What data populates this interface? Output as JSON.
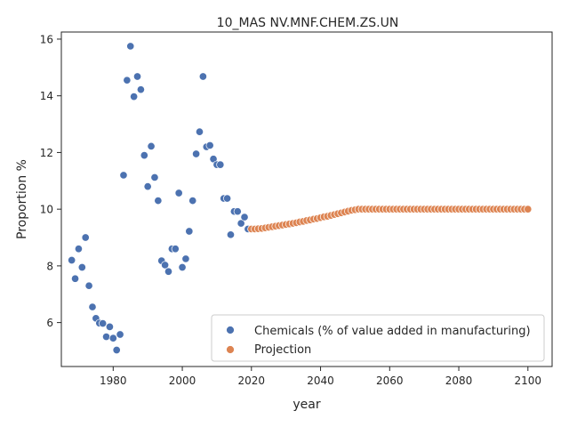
{
  "chart_data": {
    "type": "scatter",
    "title": "10_MAS NV.MNF.CHEM.ZS.UN",
    "xlabel": "year",
    "ylabel": "Proportion %",
    "xlim": [
      1965,
      2107
    ],
    "ylim": [
      4.45,
      16.25
    ],
    "xticks": [
      1980,
      2000,
      2020,
      2040,
      2060,
      2080,
      2100
    ],
    "yticks": [
      6,
      8,
      10,
      12,
      14,
      16
    ],
    "xtick_labels": [
      "1980",
      "2000",
      "2020",
      "2040",
      "2060",
      "2080",
      "2100"
    ],
    "ytick_labels": [
      "6",
      "8",
      "10",
      "12",
      "14",
      "16"
    ],
    "grid": false,
    "legend_position": "lower right",
    "series": [
      {
        "name": "Chemicals (% of value added in manufacturing)",
        "color": "#4c72b0",
        "x": [
          1968,
          1969,
          1970,
          1971,
          1972,
          1973,
          1974,
          1975,
          1976,
          1977,
          1978,
          1979,
          1980,
          1981,
          1982,
          1983,
          1984,
          1985,
          1986,
          1987,
          1988,
          1989,
          1990,
          1991,
          1992,
          1993,
          1994,
          1995,
          1996,
          1997,
          1998,
          1999,
          2000,
          2001,
          2002,
          2003,
          2004,
          2005,
          2006,
          2007,
          2008,
          2009,
          2010,
          2011,
          2012,
          2013,
          2014,
          2015,
          2016,
          2017,
          2018,
          2019
        ],
        "y": [
          8.2,
          7.55,
          8.6,
          7.95,
          9.0,
          7.3,
          6.55,
          6.15,
          5.98,
          5.97,
          5.5,
          5.85,
          5.45,
          5.03,
          5.58,
          11.2,
          14.55,
          15.75,
          13.97,
          14.68,
          14.22,
          11.9,
          10.8,
          12.22,
          11.12,
          10.3,
          8.18,
          8.03,
          7.8,
          8.6,
          8.6,
          10.57,
          7.95,
          8.25,
          9.22,
          10.3,
          11.95,
          12.73,
          14.68,
          12.2,
          12.25,
          11.77,
          11.57,
          11.57,
          10.38,
          10.38,
          9.1,
          9.92,
          9.92,
          9.5,
          9.72,
          9.3
        ]
      },
      {
        "name": "Projection",
        "color": "#dd8452",
        "x": [
          2020,
          2021,
          2022,
          2023,
          2024,
          2025,
          2026,
          2027,
          2028,
          2029,
          2030,
          2031,
          2032,
          2033,
          2034,
          2035,
          2036,
          2037,
          2038,
          2039,
          2040,
          2041,
          2042,
          2043,
          2044,
          2045,
          2046,
          2047,
          2048,
          2049,
          2050,
          2051,
          2052,
          2053,
          2054,
          2055,
          2056,
          2057,
          2058,
          2059,
          2060,
          2061,
          2062,
          2063,
          2064,
          2065,
          2066,
          2067,
          2068,
          2069,
          2070,
          2071,
          2072,
          2073,
          2074,
          2075,
          2076,
          2077,
          2078,
          2079,
          2080,
          2081,
          2082,
          2083,
          2084,
          2085,
          2086,
          2087,
          2088,
          2089,
          2090,
          2091,
          2092,
          2093,
          2094,
          2095,
          2096,
          2097,
          2098,
          2099,
          2100
        ],
        "y": [
          9.3,
          9.3,
          9.31,
          9.32,
          9.34,
          9.36,
          9.38,
          9.4,
          9.42,
          9.44,
          9.46,
          9.48,
          9.5,
          9.52,
          9.55,
          9.57,
          9.6,
          9.62,
          9.65,
          9.67,
          9.7,
          9.73,
          9.75,
          9.78,
          9.81,
          9.84,
          9.87,
          9.9,
          9.93,
          9.96,
          9.98,
          10.0,
          10.0,
          10.0,
          10.0,
          10.0,
          10.0,
          10.0,
          10.0,
          10.0,
          10.0,
          10.0,
          10.0,
          10.0,
          10.0,
          10.0,
          10.0,
          10.0,
          10.0,
          10.0,
          10.0,
          10.0,
          10.0,
          10.0,
          10.0,
          10.0,
          10.0,
          10.0,
          10.0,
          10.0,
          10.0,
          10.0,
          10.0,
          10.0,
          10.0,
          10.0,
          10.0,
          10.0,
          10.0,
          10.0,
          10.0,
          10.0,
          10.0,
          10.0,
          10.0,
          10.0,
          10.0,
          10.0,
          10.0,
          10.0,
          10.0
        ]
      }
    ]
  }
}
